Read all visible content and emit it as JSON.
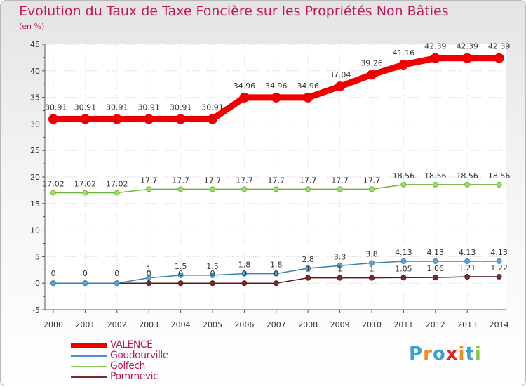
{
  "header": {
    "title": "Evolution du Taux de Taxe Foncière sur les Propriétés Non Bâties",
    "unit": "(en %)"
  },
  "logo": {
    "text": "Proxiti",
    "colors": [
      "#3aa0d8",
      "#f08a1c",
      "#3aa0d8",
      "#e0222a",
      "#f08a1c",
      "#3aa0d8",
      "#8cc63f"
    ]
  },
  "chart_data": {
    "type": "line",
    "title": "Evolution du Taux de Taxe Foncière sur les Propriétés Non Bâties",
    "ylabel": "(en %)",
    "xlabel": "",
    "ylim": [
      -5,
      45
    ],
    "yticks": [
      -5,
      0,
      5,
      10,
      15,
      20,
      25,
      30,
      35,
      40,
      45
    ],
    "categories": [
      "2000",
      "2001",
      "2002",
      "2003",
      "2004",
      "2005",
      "2006",
      "2007",
      "2008",
      "2009",
      "2010",
      "2011",
      "2012",
      "2013",
      "2014"
    ],
    "grid": true,
    "series": [
      {
        "name": "VALENCE",
        "color": "#ee0000",
        "values": [
          30.91,
          30.91,
          30.91,
          30.91,
          30.91,
          30.91,
          34.96,
          34.96,
          34.96,
          37.04,
          39.26,
          41.16,
          42.39,
          42.39,
          42.39
        ],
        "labels": [
          "30.91",
          "30.91",
          "30.91",
          "30.91",
          "30.91",
          "30.91",
          "34.96",
          "34.96",
          "34.96",
          "37.04",
          "39.26",
          "41.16",
          "42.39",
          "42.39",
          "42.39"
        ]
      },
      {
        "name": "Goudourville",
        "color": "#4a90c8",
        "values": [
          0,
          0,
          0,
          1,
          1.5,
          1.5,
          1.8,
          1.8,
          2.8,
          3.3,
          3.8,
          4.13,
          4.13,
          4.13,
          4.13
        ],
        "labels": [
          "0",
          "0",
          "0",
          "1",
          "1.5",
          "1.5",
          "1.8",
          "1.8",
          "2.8",
          "3.3",
          "3.8",
          "4.13",
          "4.13",
          "4.13",
          "4.13"
        ]
      },
      {
        "name": "Golfech",
        "color": "#8fd15a",
        "values": [
          17.02,
          17.02,
          17.02,
          17.7,
          17.7,
          17.7,
          17.7,
          17.7,
          17.7,
          17.7,
          17.7,
          18.56,
          18.56,
          18.56,
          18.56
        ],
        "labels": [
          "17.02",
          "17.02",
          "17.02",
          "17.7",
          "17.7",
          "17.7",
          "17.7",
          "17.7",
          "17.7",
          "17.7",
          "17.7",
          "18.56",
          "18.56",
          "18.56",
          "18.56"
        ]
      },
      {
        "name": "Pommevic",
        "color": "#7a2a2a",
        "values": [
          0,
          0,
          0,
          0,
          0,
          0,
          0,
          0,
          1,
          1,
          1,
          1.05,
          1.06,
          1.21,
          1.22
        ],
        "labels": [
          "0",
          "0",
          "0",
          "0",
          "0",
          "0",
          "0",
          "0",
          "1",
          "1",
          "1",
          "1.05",
          "1.06",
          "1.21",
          "1.22"
        ]
      }
    ]
  }
}
